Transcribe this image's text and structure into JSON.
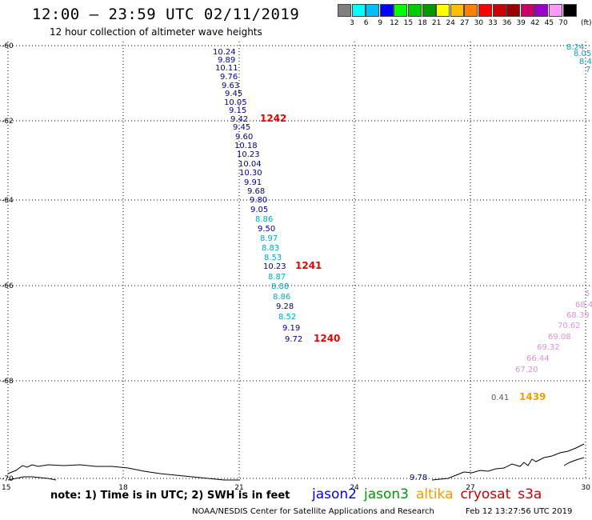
{
  "title": "12:00 – 23:59 UTC 02/11/2019",
  "subtitle": "12 hour collection of altimeter wave heights",
  "legend": {
    "colors": [
      "#808080",
      "#00ffff",
      "#00bfff",
      "#0000ff",
      "#00ff00",
      "#00cc00",
      "#009900",
      "#ffff00",
      "#ffbf00",
      "#ff8000",
      "#ff0000",
      "#cc0000",
      "#990000",
      "#cc0066",
      "#9900cc",
      "#ff99ff",
      "#000000"
    ],
    "labels": [
      "3",
      "6",
      "9",
      "12",
      "15",
      "18",
      "21",
      "24",
      "27",
      "30",
      "33",
      "36",
      "39",
      "42",
      "45",
      "70"
    ],
    "unit": "(ft)"
  },
  "axes": {
    "y_ticks": [
      "-60",
      "-62",
      "-64",
      "-66",
      "-68",
      "-70"
    ],
    "x_ticks": [
      "15",
      "18",
      "21",
      "24",
      "27",
      "30"
    ]
  },
  "track_main": {
    "values": [
      "10.24",
      "9.89",
      "10.11",
      "9.76",
      "9.63",
      "9.45",
      "10.05",
      "9.15",
      "9.42",
      "9.45",
      "9.60",
      "10.18",
      "10.23",
      "10.04",
      "10.30",
      "9.91",
      "9.68",
      "9.80",
      "9.05",
      "8.86",
      "9.50",
      "8.97",
      "8.83",
      "8.53",
      "10.23",
      "8.87",
      "8.88",
      "8.86",
      "9.28",
      "8.52",
      "9.19",
      "9.72"
    ],
    "colors": [
      "#000099",
      "#000099",
      "#000099",
      "#000099",
      "#000099",
      "#000099",
      "#000099",
      "#000099",
      "#000099",
      "#000099",
      "#000099",
      "#000099",
      "#000099",
      "#000099",
      "#000099",
      "#000099",
      "#000099",
      "#000099",
      "#000099",
      "#00aacc",
      "#000099",
      "#00aacc",
      "#00aacc",
      "#00aacc",
      "#000099",
      "#00aacc",
      "#00aacc",
      "#00aacc",
      "#000099",
      "#00aacc",
      "#000099",
      "#000099"
    ]
  },
  "track_right_top": {
    "values": [
      "8.24",
      "8.05",
      "8.4",
      "7"
    ],
    "color": "#00aacc"
  },
  "track_right_mid": {
    "values": [
      "5",
      "68.4",
      "68.39",
      "70.62",
      "69.08",
      "69.32",
      "66.44",
      "67.20"
    ],
    "color": "#e090e0"
  },
  "time_labels": [
    {
      "text": "1242",
      "color": "#ee0000"
    },
    {
      "text": "1241",
      "color": "#ee0000"
    },
    {
      "text": "1240",
      "color": "#ee0000"
    },
    {
      "text": "1439",
      "color": "#f0a000"
    }
  ],
  "misc_values": [
    {
      "text": "0.41",
      "color": "#555555"
    },
    {
      "text": "9.78",
      "color": "#000099"
    }
  ],
  "footer_note": "note:  1) Time is in UTC;  2) SWH is in feet",
  "missions": [
    {
      "name": "jason2",
      "color": "#0000ff"
    },
    {
      "name": "jason3",
      "color": "#009900"
    },
    {
      "name": "altika",
      "color": "#ff9900"
    },
    {
      "name": "cryosat",
      "color": "#cc0000"
    },
    {
      "name": "s3a",
      "color": "#cc0000"
    }
  ],
  "credit": "NOAA/NESDIS Center for Satellite Applications and Research",
  "timestamp": "Feb 12 13:27:56 UTC 2019"
}
